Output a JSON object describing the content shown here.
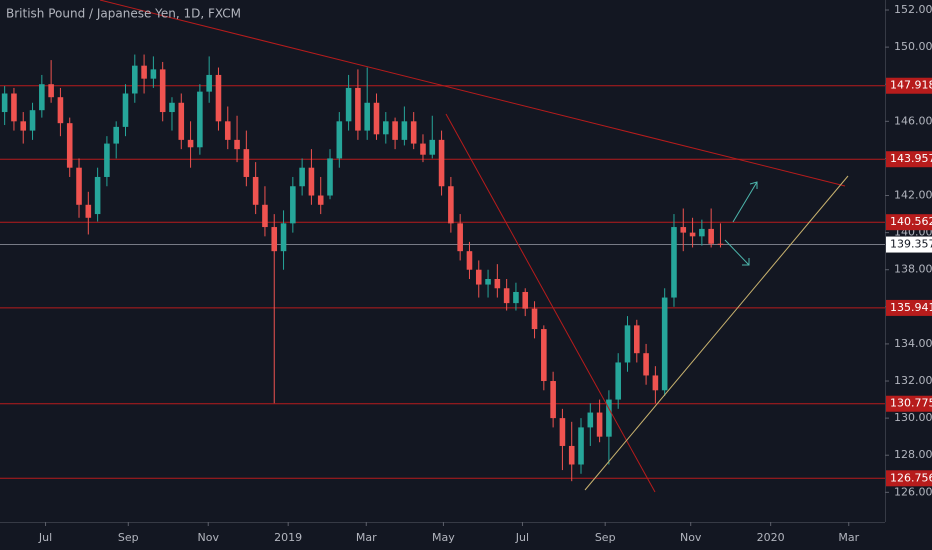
{
  "chart_data": {
    "type": "candlestick",
    "title": "British Pound / Japanese Yen, 1D, FXCM",
    "up_color": "#26a69a",
    "down_color": "#ef5350",
    "level_color": "#b71c1c",
    "open": [
      146.5,
      147.5,
      146.0,
      145.5,
      146.6,
      148.0,
      147.3,
      145.9,
      143.5,
      141.5,
      141.0,
      143.0,
      144.8,
      145.7,
      147.5,
      149.0,
      148.3,
      148.8,
      146.5,
      147.0,
      145.0,
      144.6,
      147.6,
      148.5,
      146.0,
      145.0,
      144.5,
      143.0,
      141.5,
      140.3,
      139.0,
      140.5,
      142.5,
      143.5,
      142.0,
      142.0,
      144.0,
      146.0,
      147.8,
      145.5,
      147.0,
      145.3,
      146.0,
      145.0,
      146.0,
      144.8,
      144.2,
      145.0,
      142.5,
      140.5,
      139.0,
      138.0,
      137.2,
      137.5,
      137.0,
      136.2,
      136.8,
      135.9,
      134.8,
      132.0,
      130.0,
      128.5,
      127.5,
      129.5,
      130.3,
      129.0,
      131.0,
      133.0,
      135.0,
      133.5,
      132.3,
      131.5,
      136.5,
      140.3,
      140.0,
      139.8,
      140.2,
      139.4
    ],
    "high": [
      147.9,
      147.8,
      146.5,
      147.0,
      148.5,
      149.3,
      147.8,
      146.2,
      144.0,
      142.2,
      143.5,
      145.2,
      146.0,
      148.0,
      149.6,
      149.6,
      149.5,
      149.2,
      147.3,
      147.5,
      146.0,
      148.0,
      149.5,
      148.9,
      146.8,
      146.3,
      145.5,
      143.8,
      142.5,
      141.0,
      141.2,
      143.0,
      144.0,
      144.5,
      143.0,
      144.5,
      146.5,
      148.5,
      148.8,
      148.9,
      147.5,
      146.5,
      146.2,
      146.8,
      146.5,
      145.3,
      146.3,
      145.5,
      143.0,
      141.0,
      139.5,
      138.5,
      138.0,
      138.3,
      137.5,
      137.3,
      137.0,
      136.3,
      135.0,
      132.5,
      130.5,
      129.8,
      130.0,
      130.8,
      131.0,
      131.5,
      133.5,
      135.5,
      135.3,
      134.0,
      132.8,
      137.0,
      141.0,
      141.3,
      140.8,
      140.7,
      141.3,
      140.5
    ],
    "low": [
      145.8,
      145.5,
      144.8,
      145.0,
      146.2,
      147.0,
      145.2,
      143.0,
      140.8,
      139.9,
      140.6,
      142.5,
      144.0,
      145.2,
      147.0,
      147.5,
      147.8,
      146.0,
      145.5,
      144.5,
      143.5,
      144.2,
      147.0,
      145.5,
      144.5,
      143.8,
      142.5,
      141.0,
      139.8,
      130.8,
      138.0,
      140.0,
      142.0,
      141.5,
      141.0,
      141.8,
      143.5,
      145.5,
      145.0,
      145.0,
      145.0,
      144.8,
      144.5,
      144.7,
      144.5,
      143.8,
      144.0,
      142.0,
      140.0,
      138.5,
      137.5,
      136.5,
      136.5,
      136.5,
      135.8,
      135.8,
      135.5,
      134.3,
      131.5,
      129.5,
      127.2,
      126.6,
      127.0,
      128.5,
      128.7,
      127.5,
      130.5,
      132.5,
      133.0,
      131.8,
      130.8,
      131.2,
      136.0,
      139.0,
      139.2,
      139.3,
      139.2,
      139.2
    ],
    "close": [
      147.5,
      146.0,
      145.5,
      146.6,
      148.0,
      147.3,
      145.9,
      143.5,
      141.5,
      140.8,
      143.0,
      144.8,
      145.7,
      147.5,
      149.0,
      148.3,
      148.8,
      146.5,
      147.0,
      145.0,
      144.6,
      147.6,
      148.5,
      146.0,
      145.0,
      144.5,
      143.0,
      141.5,
      140.3,
      139.0,
      140.5,
      142.5,
      143.5,
      142.0,
      141.5,
      144.0,
      146.0,
      147.8,
      145.5,
      147.0,
      145.3,
      146.0,
      145.0,
      146.0,
      144.8,
      144.2,
      145.0,
      142.5,
      140.5,
      139.0,
      138.0,
      137.2,
      137.5,
      137.0,
      136.2,
      136.8,
      135.9,
      134.8,
      132.0,
      130.0,
      128.5,
      127.5,
      129.5,
      130.3,
      129.0,
      131.0,
      133.0,
      135.0,
      133.5,
      132.3,
      131.5,
      136.5,
      140.3,
      140.0,
      139.8,
      140.2,
      139.4,
      139.357
    ],
    "xlim": [
      -0.5,
      94.7
    ],
    "xticks": [
      {
        "value": 4.4,
        "label": "Jul"
      },
      {
        "value": 13.3,
        "label": "Sep"
      },
      {
        "value": 21.9,
        "label": "Nov"
      },
      {
        "value": 30.5,
        "label": "2019"
      },
      {
        "value": 38.9,
        "label": "Mar"
      },
      {
        "value": 47.2,
        "label": "May"
      },
      {
        "value": 55.7,
        "label": "Jul"
      },
      {
        "value": 64.6,
        "label": "Sep"
      },
      {
        "value": 73.8,
        "label": "Nov"
      },
      {
        "value": 82.4,
        "label": "2020"
      },
      {
        "value": 90.8,
        "label": "Mar"
      }
    ],
    "ylim": [
      124.4,
      152.54
    ],
    "yticks": [
      {
        "value": 126,
        "label": "126.000"
      },
      {
        "value": 128,
        "label": "128.000"
      },
      {
        "value": 130,
        "label": "130.000"
      },
      {
        "value": 132,
        "label": "132.000"
      },
      {
        "value": 134,
        "label": "134.000"
      },
      {
        "value": 136,
        "label": "136.000"
      },
      {
        "value": 138,
        "label": "138.000"
      },
      {
        "value": 140,
        "label": "140.000"
      },
      {
        "value": 142,
        "label": "142.000"
      },
      {
        "value": 144,
        "label": "144.000"
      },
      {
        "value": 146,
        "label": "146.000"
      },
      {
        "value": 148,
        "label": "148.000"
      },
      {
        "value": 150,
        "label": "150.000"
      },
      {
        "value": 152,
        "label": "152.000"
      }
    ],
    "levels": [
      147.918,
      143.957,
      140.562,
      135.941,
      130.775,
      126.756
    ],
    "last_price": 139.357
  }
}
